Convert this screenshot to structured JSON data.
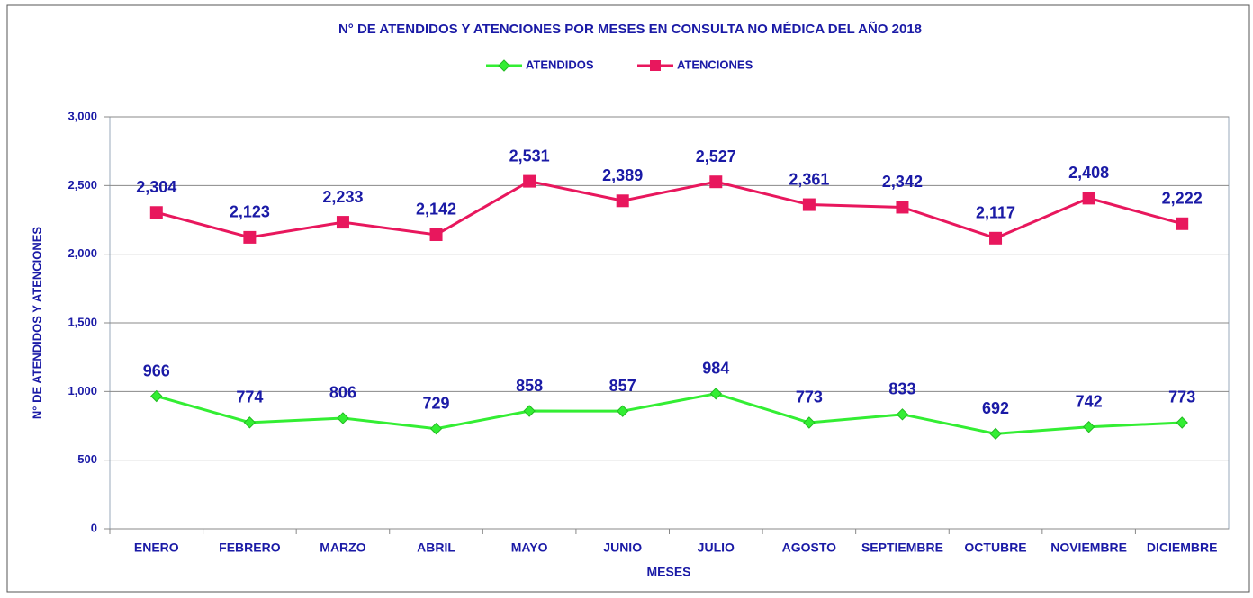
{
  "chart_data": {
    "type": "line",
    "title": "N° DE ATENDIDOS Y ATENCIONES POR MESES EN CONSULTA NO MÉDICA DEL AÑO 2018",
    "x_label": "MESES",
    "y_label": "N° DE ATENDIDOS Y ATENCIONES",
    "categories": [
      "ENERO",
      "FEBRERO",
      "MARZO",
      "ABRIL",
      "MAYO",
      "JUNIO",
      "JULIO",
      "AGOSTO",
      "SEPTIEMBRE",
      "OCTUBRE",
      "NOVIEMBRE",
      "DICIEMBRE"
    ],
    "series": [
      {
        "name": "ATENDIDOS",
        "color": "#33ee33",
        "marker_color": "#22bb22",
        "marker": "diamond",
        "values": [
          966,
          774,
          806,
          729,
          858,
          857,
          984,
          773,
          833,
          692,
          742,
          773
        ]
      },
      {
        "name": "ATENCIONES",
        "color": "#e8175d",
        "marker_color": "#e8175d",
        "marker": "square",
        "values": [
          2304,
          2123,
          2233,
          2142,
          2531,
          2389,
          2527,
          2361,
          2342,
          2117,
          2408,
          2222
        ],
        "value_labels": [
          "2,304",
          "2,123",
          "2,233",
          "2,142",
          "2,531",
          "2,389",
          "2,527",
          "2,361",
          "2,342",
          "2,117",
          "2,408",
          "2,222"
        ]
      }
    ],
    "ylim": [
      0,
      3000
    ],
    "yticks": [
      0,
      500,
      {
        "value": 1000,
        "label": "1,000"
      },
      {
        "value": 1500,
        "label": "1,500"
      },
      {
        "value": 2000,
        "label": "2,000"
      },
      {
        "value": 2500,
        "label": "2,500"
      },
      {
        "value": 3000,
        "label": "3,000"
      }
    ],
    "grid": true,
    "legend": "top"
  }
}
